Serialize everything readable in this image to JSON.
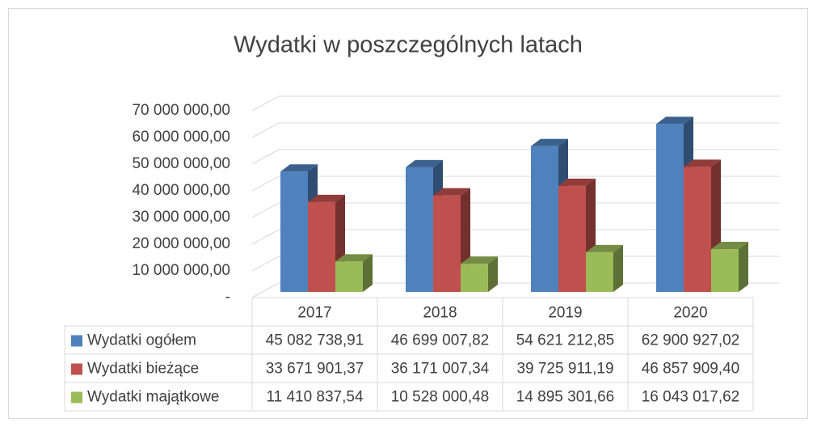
{
  "chart_data": {
    "type": "bar3d",
    "title": "Wydatki w poszczególnych latach",
    "categories": [
      "2017",
      "2018",
      "2019",
      "2020"
    ],
    "series": [
      {
        "name": "Wydatki ogółem",
        "color": "#4f81bd",
        "values": [
          45082738.91,
          46699007.82,
          54621212.85,
          62900927.02
        ],
        "value_labels": [
          "45 082 738,91",
          "46 699 007,82",
          "54 621 212,85",
          "62 900 927,02"
        ]
      },
      {
        "name": "Wydatki bieżące",
        "color": "#c0504d",
        "values": [
          33671901.37,
          36171007.34,
          39725911.19,
          46857909.4
        ],
        "value_labels": [
          "33 671 901,37",
          "36 171 007,34",
          "39 725 911,19",
          "46 857 909,40"
        ]
      },
      {
        "name": "Wydatki majątkowe",
        "color": "#9bbb59",
        "values": [
          11410837.54,
          10528000.48,
          14895301.66,
          16043017.62
        ],
        "value_labels": [
          "11 410 837,54",
          "10 528 000,48",
          "14 895 301,66",
          "16 043 017,62"
        ]
      }
    ],
    "ylim": [
      0,
      70000000
    ],
    "yticks": [
      {
        "value": 0,
        "label": "-"
      },
      {
        "value": 10000000,
        "label": "10 000 000,00"
      },
      {
        "value": 20000000,
        "label": "20 000 000,00"
      },
      {
        "value": 30000000,
        "label": "30 000 000,00"
      },
      {
        "value": 40000000,
        "label": "40 000 000,00"
      },
      {
        "value": 50000000,
        "label": "50 000 000,00"
      },
      {
        "value": 60000000,
        "label": "60 000 000,00"
      },
      {
        "value": 70000000,
        "label": "70 000 000,00"
      }
    ],
    "grid": true,
    "data_table": true
  }
}
